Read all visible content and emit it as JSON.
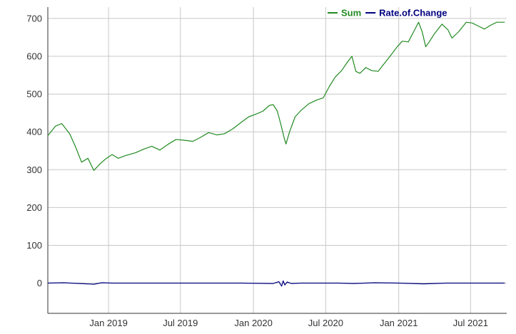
{
  "chart_data": {
    "type": "line",
    "title": "",
    "xlabel": "",
    "ylabel": "",
    "ylim": [
      -80,
      730
    ],
    "xlim": [
      "2018-08-01",
      "2021-09-30"
    ],
    "grid": true,
    "legend_position": "top-right",
    "y_ticks": [
      0,
      100,
      200,
      300,
      400,
      500,
      600,
      700
    ],
    "x_ticks": [
      {
        "date": "2019-01-01",
        "label": "Jan 2019"
      },
      {
        "date": "2019-07-01",
        "label": "Jul 2019"
      },
      {
        "date": "2020-01-01",
        "label": "Jan 2020"
      },
      {
        "date": "2020-07-01",
        "label": "Jul 2020"
      },
      {
        "date": "2021-01-01",
        "label": "Jan 2021"
      },
      {
        "date": "2021-07-01",
        "label": "Jul 2021"
      }
    ],
    "series": [
      {
        "name": "Sum",
        "color": "#228b22",
        "points": [
          [
            "2018-08-01",
            390
          ],
          [
            "2018-08-20",
            415
          ],
          [
            "2018-09-05",
            422
          ],
          [
            "2018-09-25",
            395
          ],
          [
            "2018-10-10",
            360
          ],
          [
            "2018-10-25",
            320
          ],
          [
            "2018-11-10",
            330
          ],
          [
            "2018-11-25",
            298
          ],
          [
            "2018-12-10",
            315
          ],
          [
            "2018-12-24",
            328
          ],
          [
            "2019-01-10",
            340
          ],
          [
            "2019-01-25",
            330
          ],
          [
            "2019-02-15",
            338
          ],
          [
            "2019-03-10",
            345
          ],
          [
            "2019-04-01",
            355
          ],
          [
            "2019-04-20",
            362
          ],
          [
            "2019-05-10",
            352
          ],
          [
            "2019-06-01",
            368
          ],
          [
            "2019-06-20",
            380
          ],
          [
            "2019-07-10",
            378
          ],
          [
            "2019-08-01",
            375
          ],
          [
            "2019-08-20",
            385
          ],
          [
            "2019-09-10",
            398
          ],
          [
            "2019-10-01",
            392
          ],
          [
            "2019-10-20",
            395
          ],
          [
            "2019-11-10",
            408
          ],
          [
            "2019-12-01",
            425
          ],
          [
            "2019-12-20",
            440
          ],
          [
            "2020-01-10",
            448
          ],
          [
            "2020-01-25",
            455
          ],
          [
            "2020-02-10",
            470
          ],
          [
            "2020-02-20",
            472
          ],
          [
            "2020-03-01",
            455
          ],
          [
            "2020-03-10",
            420
          ],
          [
            "2020-03-18",
            385
          ],
          [
            "2020-03-23",
            368
          ],
          [
            "2020-04-01",
            400
          ],
          [
            "2020-04-15",
            440
          ],
          [
            "2020-05-01",
            458
          ],
          [
            "2020-05-20",
            475
          ],
          [
            "2020-06-10",
            485
          ],
          [
            "2020-06-25",
            490
          ],
          [
            "2020-07-10",
            520
          ],
          [
            "2020-07-25",
            545
          ],
          [
            "2020-08-10",
            562
          ],
          [
            "2020-08-25",
            585
          ],
          [
            "2020-09-05",
            600
          ],
          [
            "2020-09-15",
            560
          ],
          [
            "2020-09-25",
            555
          ],
          [
            "2020-10-10",
            570
          ],
          [
            "2020-10-25",
            562
          ],
          [
            "2020-11-10",
            560
          ],
          [
            "2020-11-25",
            580
          ],
          [
            "2020-12-10",
            600
          ],
          [
            "2020-12-28",
            625
          ],
          [
            "2021-01-10",
            640
          ],
          [
            "2021-01-25",
            638
          ],
          [
            "2021-02-10",
            670
          ],
          [
            "2021-02-20",
            690
          ],
          [
            "2021-03-01",
            665
          ],
          [
            "2021-03-10",
            625
          ],
          [
            "2021-03-20",
            640
          ],
          [
            "2021-04-01",
            660
          ],
          [
            "2021-04-20",
            685
          ],
          [
            "2021-05-05",
            670
          ],
          [
            "2021-05-15",
            648
          ],
          [
            "2021-06-01",
            665
          ],
          [
            "2021-06-20",
            690
          ],
          [
            "2021-07-05",
            688
          ],
          [
            "2021-07-20",
            680
          ],
          [
            "2021-08-05",
            672
          ],
          [
            "2021-08-20",
            682
          ],
          [
            "2021-09-05",
            690
          ],
          [
            "2021-09-25",
            690
          ]
        ]
      },
      {
        "name": "Rate.of.Change",
        "color": "#000080",
        "points": [
          [
            "2018-08-01",
            0
          ],
          [
            "2018-09-10",
            1
          ],
          [
            "2018-10-20",
            -1
          ],
          [
            "2018-11-25",
            -3
          ],
          [
            "2018-12-15",
            1
          ],
          [
            "2019-01-10",
            0
          ],
          [
            "2019-03-01",
            0
          ],
          [
            "2019-06-01",
            0
          ],
          [
            "2019-09-01",
            0
          ],
          [
            "2019-12-01",
            0
          ],
          [
            "2020-02-20",
            -1
          ],
          [
            "2020-03-05",
            4
          ],
          [
            "2020-03-12",
            -8
          ],
          [
            "2020-03-16",
            6
          ],
          [
            "2020-03-20",
            -5
          ],
          [
            "2020-03-26",
            3
          ],
          [
            "2020-04-05",
            -1
          ],
          [
            "2020-05-01",
            0
          ],
          [
            "2020-08-01",
            0
          ],
          [
            "2020-09-10",
            -1
          ],
          [
            "2020-11-01",
            1
          ],
          [
            "2021-01-01",
            0
          ],
          [
            "2021-03-05",
            -2
          ],
          [
            "2021-05-01",
            0
          ],
          [
            "2021-07-01",
            0
          ],
          [
            "2021-09-25",
            0
          ]
        ]
      }
    ]
  }
}
